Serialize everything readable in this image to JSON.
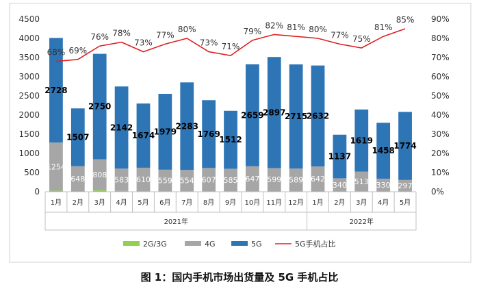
{
  "chart_data": {
    "type": "bar",
    "title": "图 1：国内手机市场出货量及 5G 手机占比",
    "categories": [
      "1月",
      "2月",
      "3月",
      "4月",
      "5月",
      "6月",
      "7月",
      "8月",
      "9月",
      "10月",
      "11月",
      "12月",
      "1月",
      "2月",
      "3月",
      "4月",
      "5月"
    ],
    "groups": [
      {
        "label": "2021年",
        "start": 0,
        "end": 11
      },
      {
        "label": "2022年",
        "start": 12,
        "end": 16
      }
    ],
    "series": [
      {
        "name": "2G/3G",
        "type": "bar",
        "color": "#92d050",
        "values": [
          28,
          18,
          38,
          20,
          16,
          15,
          14,
          12,
          14,
          16,
          18,
          16,
          18,
          10,
          12,
          10,
          10
        ]
      },
      {
        "name": "4G",
        "type": "bar",
        "color": "#a6a6a6",
        "values": [
          1254,
          648,
          808,
          583,
          610,
          559,
          554,
          607,
          585,
          647,
          599,
          589,
          642,
          340,
          513,
          330,
          297
        ]
      },
      {
        "name": "5G",
        "type": "bar",
        "color": "#2e75b6",
        "values": [
          2728,
          1507,
          2750,
          2142,
          1674,
          1979,
          2283,
          1769,
          1512,
          2659,
          2897,
          2715,
          2632,
          1137,
          1619,
          1458,
          1774
        ]
      },
      {
        "name": "5G手机占比",
        "type": "line",
        "axis": "right",
        "color": "#e02020",
        "values": [
          68,
          69,
          76,
          78,
          73,
          77,
          80,
          73,
          71,
          79,
          82,
          81,
          80,
          77,
          75,
          81,
          85
        ]
      }
    ],
    "data_labels_5g": [
      "2728",
      "1507",
      "2750",
      "2142",
      "1674",
      "1979",
      "2283",
      "1769",
      "1512",
      "2659",
      "2897",
      "2715",
      "2632",
      "1137",
      "1619",
      "1458",
      "1774"
    ],
    "data_labels_4g": [
      "1254",
      "648",
      "808",
      "583",
      "610",
      "559",
      "554",
      "607",
      "585",
      "647",
      "599",
      "589",
      "642",
      "340",
      "513",
      "330",
      "297"
    ],
    "data_labels_pct": [
      "68%",
      "69%",
      "76%",
      "78%",
      "73%",
      "77%",
      "80%",
      "73%",
      "71%",
      "79%",
      "82%",
      "81%",
      "80%",
      "77%",
      "75%",
      "81%",
      "85%"
    ],
    "yleft": {
      "min": 0,
      "max": 4500,
      "step": 500,
      "ticks": [
        "0",
        "500",
        "1000",
        "1500",
        "2000",
        "2500",
        "3000",
        "3500",
        "4000",
        "4500"
      ]
    },
    "yright": {
      "min": 0,
      "max": 90,
      "step": 10,
      "ticks": [
        "0%",
        "10%",
        "20%",
        "30%",
        "40%",
        "50%",
        "60%",
        "70%",
        "80%",
        "90%"
      ]
    },
    "legend": {
      "position": "bottom",
      "items": [
        "2G/3G",
        "4G",
        "5G",
        "5G手机占比"
      ]
    },
    "grid": false
  }
}
